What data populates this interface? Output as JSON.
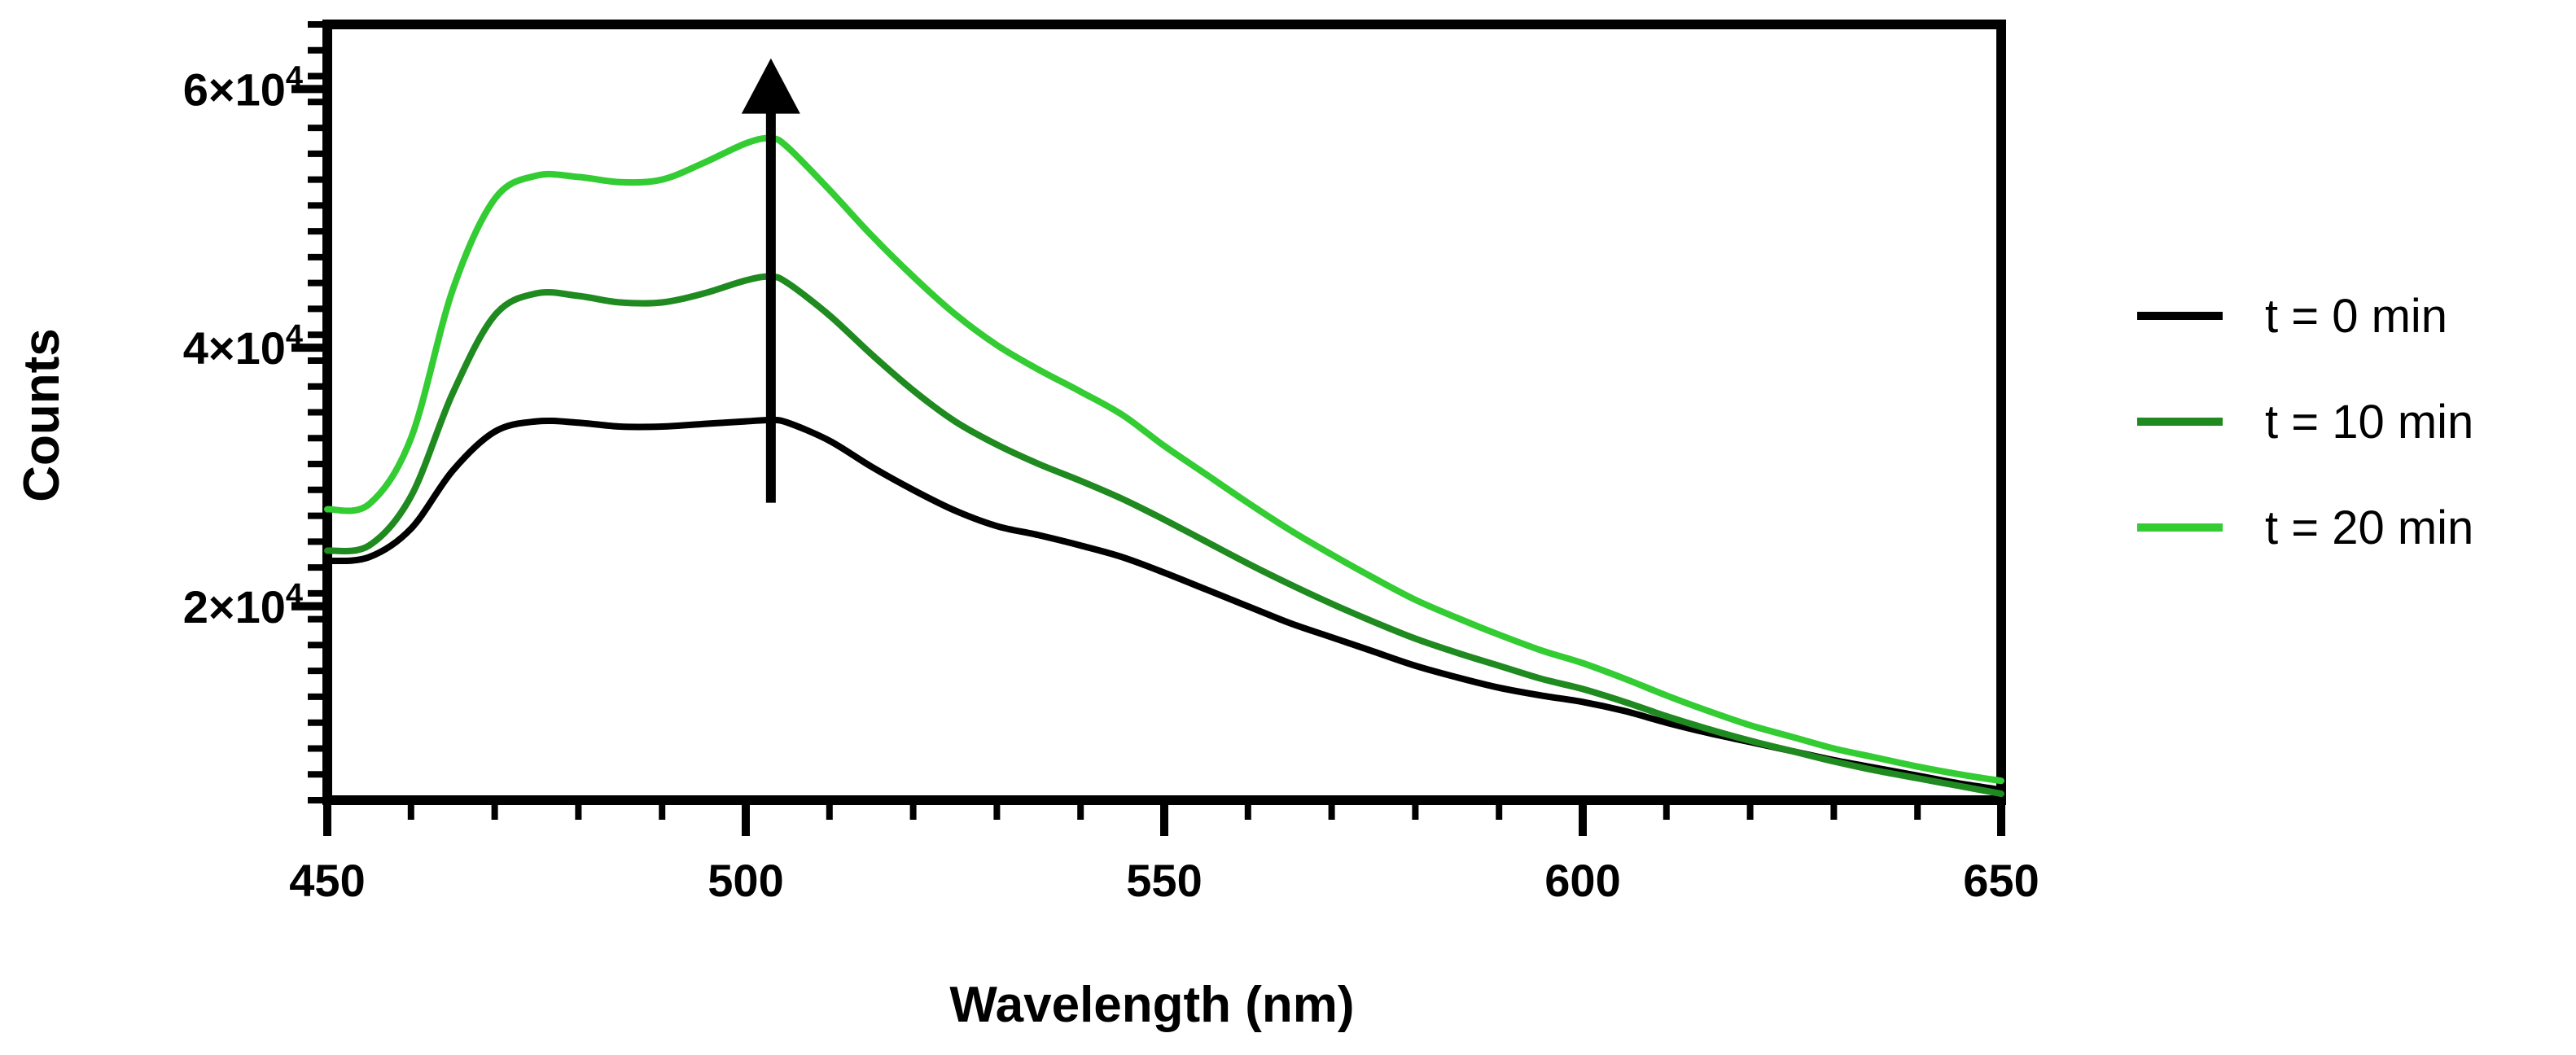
{
  "chart_data": {
    "type": "line",
    "title": "",
    "xlabel": "Wavelength (nm)",
    "ylabel": "Counts",
    "xlim": [
      450,
      650
    ],
    "ylim": [
      5000,
      65000
    ],
    "x_ticks": [
      450,
      500,
      550,
      600,
      650
    ],
    "x_tick_labels": [
      "450",
      "500",
      "550",
      "600",
      "650"
    ],
    "y_ticks": [
      20000,
      40000,
      60000
    ],
    "y_tick_labels": [
      {
        "base": "2×10",
        "exp": "4"
      },
      {
        "base": "4×10",
        "exp": "4"
      },
      {
        "base": "6×10",
        "exp": "4"
      }
    ],
    "grid": false,
    "legend_position": "right",
    "annotation": {
      "type": "arrow",
      "meaning": "increasing counts with time",
      "x": 503,
      "y_from": 28000,
      "y_to": 62000
    },
    "x": [
      450,
      455,
      460,
      465,
      470,
      475,
      480,
      485,
      490,
      495,
      500,
      503,
      505,
      510,
      515,
      520,
      525,
      530,
      535,
      540,
      545,
      550,
      555,
      560,
      565,
      570,
      575,
      580,
      585,
      590,
      595,
      600,
      605,
      610,
      615,
      620,
      625,
      630,
      635,
      640,
      645,
      650
    ],
    "series": [
      {
        "name": "t = 0 min",
        "color": "#000000",
        "values": [
          23500,
          23800,
          26000,
          30500,
          33500,
          34300,
          34200,
          33900,
          33900,
          34100,
          34300,
          34400,
          34200,
          32800,
          30800,
          29000,
          27400,
          26200,
          25500,
          24700,
          23800,
          22600,
          21300,
          20000,
          18700,
          17600,
          16500,
          15400,
          14500,
          13700,
          13100,
          12600,
          11900,
          11000,
          10200,
          9500,
          8800,
          8100,
          7500,
          6900,
          6300,
          5800
        ]
      },
      {
        "name": "t = 10 min",
        "color": "#1f8a1f",
        "values": [
          24300,
          24700,
          28500,
          36500,
          42500,
          44200,
          44000,
          43500,
          43500,
          44200,
          45200,
          45500,
          45000,
          42500,
          39500,
          36700,
          34300,
          32500,
          31000,
          29700,
          28300,
          26700,
          25000,
          23300,
          21700,
          20200,
          18800,
          17500,
          16400,
          15400,
          14400,
          13600,
          12600,
          11500,
          10500,
          9600,
          8800,
          8000,
          7300,
          6700,
          6100,
          5500
        ]
      },
      {
        "name": "t = 20 min",
        "color": "#33cc33",
        "values": [
          27500,
          27900,
          33000,
          44500,
          51500,
          53300,
          53200,
          52800,
          53000,
          54300,
          55800,
          56200,
          55500,
          52200,
          48700,
          45500,
          42600,
          40200,
          38300,
          36600,
          34800,
          32400,
          30200,
          28000,
          25900,
          24000,
          22200,
          20500,
          19100,
          17800,
          16600,
          15600,
          14400,
          13100,
          11900,
          10800,
          9900,
          9000,
          8300,
          7600,
          7000,
          6500
        ]
      }
    ]
  }
}
